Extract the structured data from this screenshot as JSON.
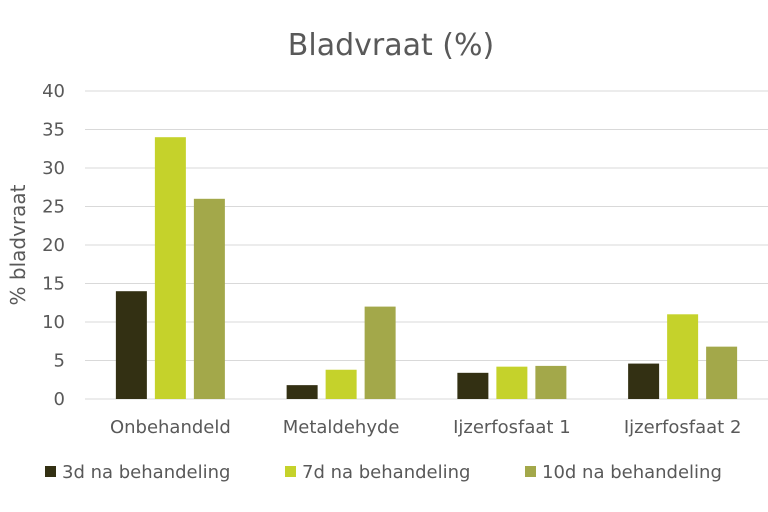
{
  "chart_data": {
    "type": "bar",
    "title": "Bladvraat  (%)",
    "xlabel": "",
    "ylabel": "% bladvraat",
    "ylim": [
      0,
      40
    ],
    "yticks": [
      0,
      5,
      10,
      15,
      20,
      25,
      30,
      35,
      40
    ],
    "grid": true,
    "legend_position": "bottom",
    "categories": [
      "Onbehandeld",
      "Metaldehyde",
      "Ijzerfosfaat 1",
      "Ijzerfosfaat 2"
    ],
    "series": [
      {
        "name": "3d na behandeling",
        "color": "#333013",
        "values": [
          14,
          1.8,
          3.4,
          4.6
        ]
      },
      {
        "name": "7d na behandeling",
        "color": "#c5d22b",
        "values": [
          34,
          3.8,
          4.2,
          11
        ]
      },
      {
        "name": "10d na behandeling",
        "color": "#a3a84a",
        "values": [
          26,
          12,
          4.3,
          6.8
        ]
      }
    ]
  }
}
